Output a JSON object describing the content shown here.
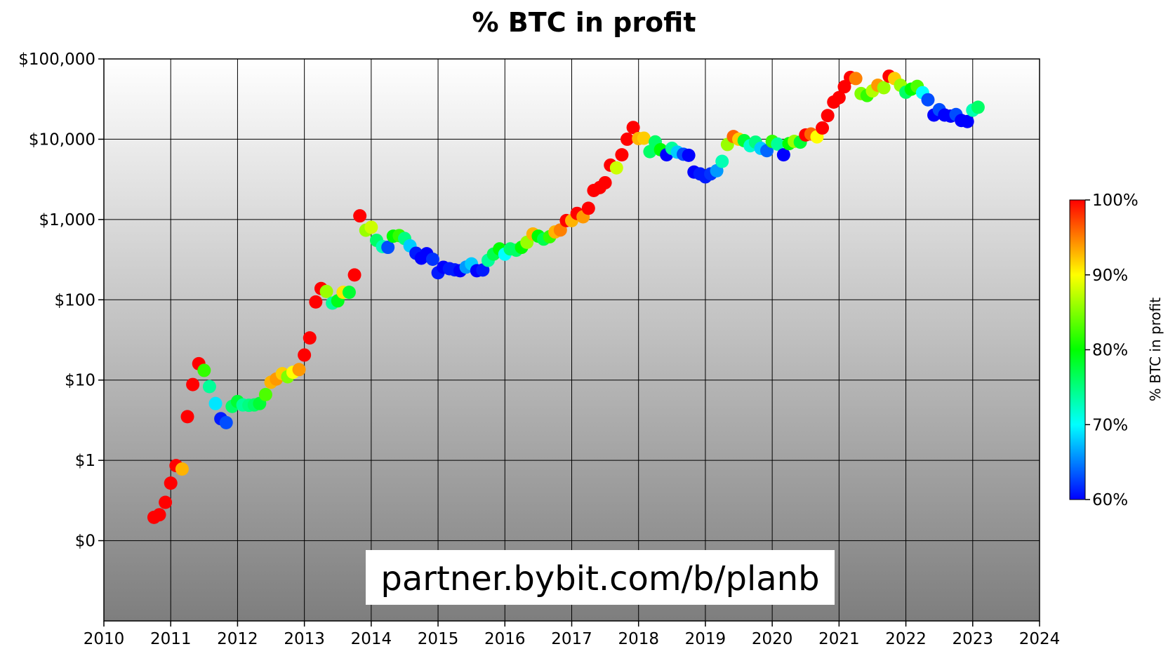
{
  "chart_data": {
    "type": "scatter",
    "title": "% BTC in profit",
    "xlabel": "",
    "ylabel": "",
    "x_range": [
      2010,
      2024
    ],
    "x_ticks": [
      "2010",
      "2011",
      "2012",
      "2013",
      "2014",
      "2015",
      "2016",
      "2017",
      "2018",
      "2019",
      "2020",
      "2021",
      "2022",
      "2023",
      "2024"
    ],
    "y_scale": "log",
    "y_range": [
      0.01,
      100000
    ],
    "y_ticks": [
      {
        "value": 100000,
        "label": "$100,000"
      },
      {
        "value": 10000,
        "label": "$10,000"
      },
      {
        "value": 1000,
        "label": "$1,000"
      },
      {
        "value": 100,
        "label": "$100"
      },
      {
        "value": 10,
        "label": "$10"
      },
      {
        "value": 1,
        "label": "$1"
      },
      {
        "value": 0.1,
        "label": "$0"
      }
    ],
    "grid": true,
    "background": "vertical gradient white to grey",
    "colorbar": {
      "label": "% BTC in profit",
      "range": [
        60,
        100
      ],
      "ticks": [
        "60%",
        "70%",
        "80%",
        "90%",
        "100%"
      ],
      "colors": [
        "#0000ff",
        "#00ffff",
        "#00ff00",
        "#ffff00",
        "#ff0000"
      ]
    },
    "watermark": "partner.bybit.com/b/planb",
    "points": [
      [
        2010.75,
        0.195,
        100
      ],
      [
        2010.83,
        0.21,
        100
      ],
      [
        2010.92,
        0.3,
        100
      ],
      [
        2011.0,
        0.52,
        100
      ],
      [
        2011.08,
        0.86,
        100
      ],
      [
        2011.17,
        0.78,
        93
      ],
      [
        2011.25,
        3.5,
        100
      ],
      [
        2011.33,
        8.8,
        100
      ],
      [
        2011.42,
        16.0,
        100
      ],
      [
        2011.5,
        13.2,
        82
      ],
      [
        2011.58,
        8.3,
        74
      ],
      [
        2011.67,
        5.1,
        69
      ],
      [
        2011.75,
        3.3,
        61
      ],
      [
        2011.83,
        2.95,
        63
      ],
      [
        2011.92,
        4.7,
        76
      ],
      [
        2012.0,
        5.4,
        78
      ],
      [
        2012.08,
        4.9,
        74
      ],
      [
        2012.17,
        4.85,
        75
      ],
      [
        2012.25,
        4.9,
        76
      ],
      [
        2012.33,
        5.1,
        78
      ],
      [
        2012.42,
        6.6,
        83
      ],
      [
        2012.5,
        9.4,
        93
      ],
      [
        2012.58,
        10.3,
        94
      ],
      [
        2012.67,
        12.0,
        92
      ],
      [
        2012.75,
        11.0,
        85
      ],
      [
        2012.83,
        12.5,
        90
      ],
      [
        2012.92,
        13.5,
        94
      ],
      [
        2013.0,
        20.5,
        100
      ],
      [
        2013.08,
        33.5,
        100
      ],
      [
        2013.17,
        94,
        100
      ],
      [
        2013.25,
        138,
        100
      ],
      [
        2013.33,
        127,
        86
      ],
      [
        2013.42,
        91,
        74
      ],
      [
        2013.5,
        97,
        79
      ],
      [
        2013.58,
        124,
        91
      ],
      [
        2013.67,
        124,
        78
      ],
      [
        2013.75,
        204,
        100
      ],
      [
        2013.83,
        1110,
        100
      ],
      [
        2013.92,
        735,
        86
      ],
      [
        2014.0,
        800,
        88
      ],
      [
        2014.08,
        550,
        76
      ],
      [
        2014.17,
        460,
        73
      ],
      [
        2014.25,
        450,
        63
      ],
      [
        2014.33,
        620,
        80
      ],
      [
        2014.42,
        630,
        82
      ],
      [
        2014.5,
        580,
        75
      ],
      [
        2014.58,
        470,
        68
      ],
      [
        2014.67,
        380,
        61
      ],
      [
        2014.75,
        330,
        60
      ],
      [
        2014.83,
        375,
        60
      ],
      [
        2014.92,
        320,
        62
      ],
      [
        2015.0,
        217,
        61
      ],
      [
        2015.08,
        254,
        60
      ],
      [
        2015.17,
        244,
        61
      ],
      [
        2015.25,
        236,
        61
      ],
      [
        2015.33,
        230,
        60
      ],
      [
        2015.42,
        255,
        66
      ],
      [
        2015.5,
        280,
        68
      ],
      [
        2015.58,
        230,
        60
      ],
      [
        2015.67,
        235,
        61
      ],
      [
        2015.75,
        310,
        74
      ],
      [
        2015.83,
        370,
        77
      ],
      [
        2015.92,
        430,
        80
      ],
      [
        2016.0,
        370,
        70
      ],
      [
        2016.08,
        430,
        76
      ],
      [
        2016.17,
        415,
        76
      ],
      [
        2016.25,
        450,
        80
      ],
      [
        2016.33,
        520,
        86
      ],
      [
        2016.42,
        660,
        93
      ],
      [
        2016.5,
        620,
        80
      ],
      [
        2016.58,
        570,
        77
      ],
      [
        2016.67,
        610,
        82
      ],
      [
        2016.75,
        700,
        93
      ],
      [
        2016.83,
        740,
        95
      ],
      [
        2016.92,
        970,
        100
      ],
      [
        2017.0,
        970,
        93
      ],
      [
        2017.08,
        1190,
        100
      ],
      [
        2017.17,
        1080,
        94
      ],
      [
        2017.25,
        1380,
        100
      ],
      [
        2017.33,
        2300,
        100
      ],
      [
        2017.42,
        2500,
        100
      ],
      [
        2017.5,
        2870,
        100
      ],
      [
        2017.58,
        4750,
        100
      ],
      [
        2017.67,
        4400,
        88
      ],
      [
        2017.75,
        6400,
        100
      ],
      [
        2017.83,
        10000,
        100
      ],
      [
        2017.92,
        14000,
        100
      ],
      [
        2018.0,
        10200,
        93
      ],
      [
        2018.08,
        10300,
        92
      ],
      [
        2018.17,
        7000,
        76
      ],
      [
        2018.25,
        9250,
        76
      ],
      [
        2018.33,
        7400,
        80
      ],
      [
        2018.42,
        6400,
        60
      ],
      [
        2018.5,
        7700,
        74
      ],
      [
        2018.58,
        6900,
        68
      ],
      [
        2018.67,
        6500,
        63
      ],
      [
        2018.75,
        6300,
        60
      ],
      [
        2018.83,
        3900,
        60
      ],
      [
        2018.92,
        3700,
        61
      ],
      [
        2019.0,
        3400,
        61
      ],
      [
        2019.08,
        3700,
        62
      ],
      [
        2019.17,
        4050,
        66
      ],
      [
        2019.25,
        5300,
        73
      ],
      [
        2019.33,
        8600,
        86
      ],
      [
        2019.42,
        10800,
        96
      ],
      [
        2019.5,
        10000,
        92
      ],
      [
        2019.58,
        9600,
        78
      ],
      [
        2019.67,
        8300,
        72
      ],
      [
        2019.75,
        9200,
        75
      ],
      [
        2019.83,
        7700,
        68
      ],
      [
        2019.92,
        7200,
        64
      ],
      [
        2020.0,
        9400,
        82
      ],
      [
        2020.08,
        8700,
        74
      ],
      [
        2020.17,
        6400,
        60
      ],
      [
        2020.25,
        8800,
        80
      ],
      [
        2020.33,
        9400,
        86
      ],
      [
        2020.42,
        9200,
        78
      ],
      [
        2020.5,
        11300,
        100
      ],
      [
        2020.58,
        11600,
        96
      ],
      [
        2020.67,
        10700,
        90
      ],
      [
        2020.75,
        13800,
        100
      ],
      [
        2020.83,
        19700,
        100
      ],
      [
        2020.92,
        29000,
        100
      ],
      [
        2021.0,
        33000,
        100
      ],
      [
        2021.08,
        45000,
        100
      ],
      [
        2021.17,
        58800,
        100
      ],
      [
        2021.25,
        57000,
        95
      ],
      [
        2021.33,
        37000,
        85
      ],
      [
        2021.42,
        35000,
        82
      ],
      [
        2021.5,
        40000,
        87
      ],
      [
        2021.58,
        47000,
        94
      ],
      [
        2021.67,
        43800,
        86
      ],
      [
        2021.75,
        61000,
        100
      ],
      [
        2021.83,
        57000,
        92
      ],
      [
        2021.92,
        47000,
        86
      ],
      [
        2022.0,
        38500,
        76
      ],
      [
        2022.08,
        42000,
        80
      ],
      [
        2022.17,
        45500,
        83
      ],
      [
        2022.25,
        38000,
        70
      ],
      [
        2022.33,
        31000,
        63
      ],
      [
        2022.42,
        20000,
        60
      ],
      [
        2022.5,
        23300,
        63
      ],
      [
        2022.58,
        20000,
        60
      ],
      [
        2022.67,
        19400,
        60
      ],
      [
        2022.75,
        20300,
        63
      ],
      [
        2022.83,
        17100,
        60
      ],
      [
        2022.92,
        16600,
        60
      ],
      [
        2023.0,
        23000,
        73
      ],
      [
        2023.08,
        25000,
        76
      ]
    ]
  }
}
